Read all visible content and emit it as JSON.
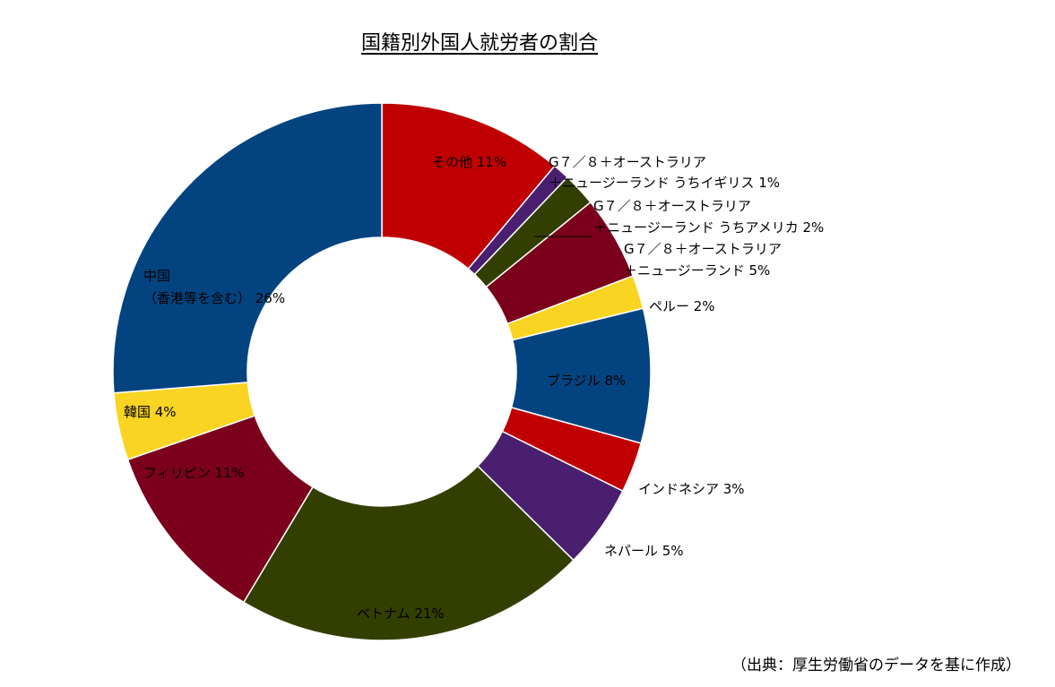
{
  "chart_data": {
    "type": "pie",
    "title": "国籍別外国人就労者の割合",
    "source": "（出典：厚生労働省のデータを基に作成）",
    "donut": true,
    "slices": [
      {
        "label": "その他",
        "pct_text": "11%",
        "value": 11,
        "color": "#c00000"
      },
      {
        "label": "G７／８＋オーストラリア＋ニュージーランド うちイギリス",
        "pct_text": "1%",
        "value": 1,
        "color": "#4b1f6f"
      },
      {
        "label": "G７／８＋オーストラリア＋ニュージーランド うちアメリカ",
        "pct_text": "2%",
        "value": 2,
        "color": "#333f00"
      },
      {
        "label": "G７／８＋オーストラリア＋ニュージーランド",
        "pct_text": "5%",
        "value": 5,
        "color": "#7b001c"
      },
      {
        "label": "ペルー",
        "pct_text": "2%",
        "value": 2,
        "color": "#f9d423"
      },
      {
        "label": "ブラジル",
        "pct_text": "8%",
        "value": 8,
        "color": "#034480"
      },
      {
        "label": "インドネシア",
        "pct_text": "3%",
        "value": 3,
        "color": "#c00000"
      },
      {
        "label": "ネパール",
        "pct_text": "5%",
        "value": 5,
        "color": "#4b1f6f"
      },
      {
        "label": "ベトナム",
        "pct_text": "21%",
        "value": 21,
        "color": "#333f00"
      },
      {
        "label": "フィリピン",
        "pct_text": "11%",
        "value": 11,
        "color": "#7b001c"
      },
      {
        "label": "韓国",
        "pct_text": "4%",
        "value": 4,
        "color": "#f9d423"
      },
      {
        "label": "中国（香港等を含む）",
        "pct_text": "26%",
        "value": 26,
        "color": "#034480"
      }
    ]
  },
  "labels": {
    "other": "その他 11%",
    "uk_line1": "G７／８＋オーストラリア",
    "uk_line2": "＋ニュージーランド うちイギリス 1%",
    "us_line1": "G７／８＋オーストラリア",
    "us_line2": "＋ニュージーランド うちアメリカ 2%",
    "g7_line1": "G７／８＋オーストラリア",
    "g7_line2": "＋ニュージーランド 5%",
    "peru": "ペルー 2%",
    "brazil": "ブラジル 8%",
    "indonesia": "インドネシア 3%",
    "nepal": "ネパール 5%",
    "vietnam": "ベトナム 21%",
    "philippines": "フィリピン 11%",
    "korea": "韓国 4%",
    "china_line1": "中国",
    "china_line2": "（香港等を含む） 26%"
  }
}
